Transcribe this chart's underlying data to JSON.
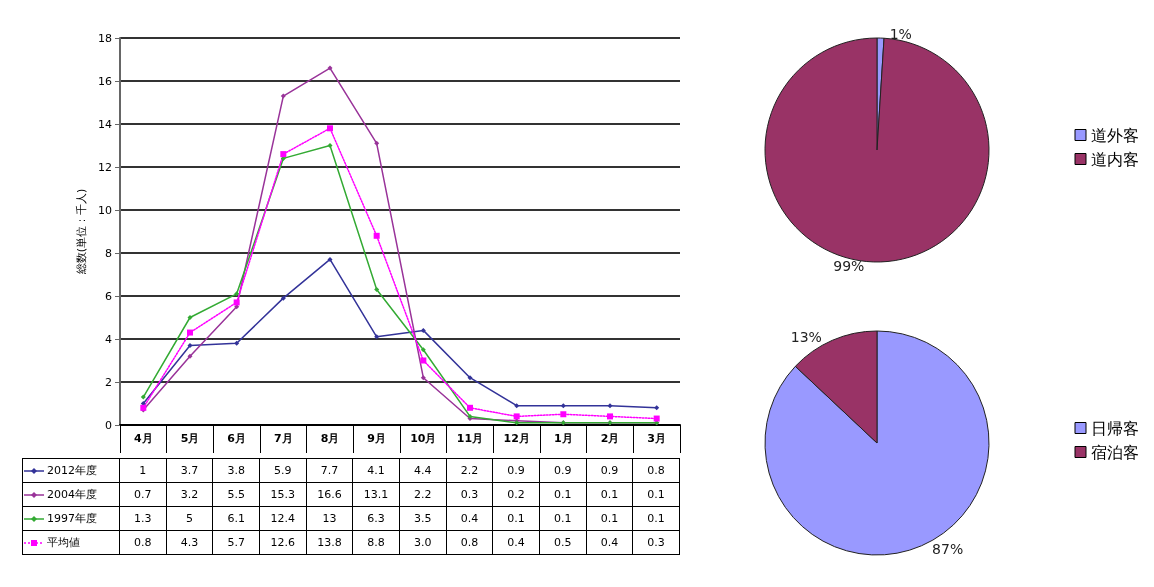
{
  "chart_data": [
    {
      "type": "line",
      "ylabel": "総数(単位：千人)",
      "categories": [
        "4月",
        "5月",
        "6月",
        "7月",
        "8月",
        "9月",
        "10月",
        "11月",
        "12月",
        "1月",
        "2月",
        "3月"
      ],
      "ylim": [
        0,
        18
      ],
      "yticks": [
        0,
        2,
        4,
        6,
        8,
        10,
        12,
        14,
        16,
        18
      ],
      "grid": "y",
      "legend": "bottom left",
      "series": [
        {
          "name": "2012年度",
          "color": "#333399",
          "marker": "diamond",
          "line_style": "solid",
          "values": [
            1,
            3.7,
            3.8,
            5.9,
            7.7,
            4.1,
            4.4,
            2.2,
            0.9,
            0.9,
            0.9,
            0.8
          ],
          "value_labels": [
            "1",
            "3.7",
            "3.8",
            "5.9",
            "7.7",
            "4.1",
            "4.4",
            "2.2",
            "0.9",
            "0.9",
            "0.9",
            "0.8"
          ]
        },
        {
          "name": "2004年度",
          "color": "#993399",
          "marker": "diamond",
          "line_style": "solid",
          "values": [
            0.7,
            3.2,
            5.5,
            15.3,
            16.6,
            13.1,
            2.2,
            0.3,
            0.2,
            0.1,
            0.1,
            0.1
          ],
          "value_labels": [
            "0.7",
            "3.2",
            "5.5",
            "15.3",
            "16.6",
            "13.1",
            "2.2",
            "0.3",
            "0.2",
            "0.1",
            "0.1",
            "0.1"
          ]
        },
        {
          "name": "1997年度",
          "color": "#33aa33",
          "marker": "diamond",
          "line_style": "solid",
          "values": [
            1.3,
            5,
            6.1,
            12.4,
            13,
            6.3,
            3.5,
            0.4,
            0.1,
            0.1,
            0.1,
            0.1
          ],
          "value_labels": [
            "1.3",
            "5",
            "6.1",
            "12.4",
            "13",
            "6.3",
            "3.5",
            "0.4",
            "0.1",
            "0.1",
            "0.1",
            "0.1"
          ]
        },
        {
          "name": "平均値",
          "color": "#ff00ff",
          "marker": "square",
          "line_style": "dotted",
          "values": [
            0.8,
            4.3,
            5.7,
            12.6,
            13.8,
            8.8,
            3.0,
            0.8,
            0.4,
            0.5,
            0.4,
            0.3
          ],
          "value_labels": [
            "0.8",
            "4.3",
            "5.7",
            "12.6",
            "13.8",
            "8.8",
            "3.0",
            "0.8",
            "0.4",
            "0.5",
            "0.4",
            "0.3"
          ]
        }
      ]
    },
    {
      "type": "pie",
      "categories": [
        "道外客",
        "道内客"
      ],
      "values": [
        1,
        99
      ],
      "value_labels": [
        "1%",
        "99%"
      ],
      "colors": [
        "#9999ff",
        "#993366"
      ],
      "legend": "right"
    },
    {
      "type": "pie",
      "categories": [
        "日帰客",
        "宿泊客"
      ],
      "values": [
        87,
        13
      ],
      "value_labels": [
        "87%",
        "13%"
      ],
      "colors": [
        "#9999ff",
        "#993366"
      ],
      "legend": "right"
    }
  ]
}
